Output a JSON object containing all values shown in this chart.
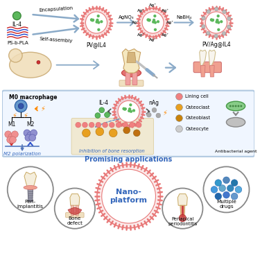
{
  "bg_color": "#ffffff",
  "encap_label": "Encapsulation",
  "self_assembly_label": "Self-assembly",
  "agno3_label": "AgNO₃",
  "nabh4_label": "NaBH₄",
  "ag_ion": "Ag⁺",
  "pv_il4_label": "PV@IL4",
  "pv_ag_il4_label": "PV/Ag@IL4",
  "il4_label": "IL-4",
  "ps_b_pla_label": "PS-b-PLA",
  "m0_label": "M0 macrophage",
  "m1_label": "M1",
  "m2_label": "M2",
  "m2_polarization": "M2 polarization",
  "nag_label": "nAg",
  "inhibition_label": "Inhibition of bone resorption",
  "antibacterial_label": "Antibacterial agent",
  "legend_items": [
    "Lining cell",
    "Osteoclast",
    "Osteoblast",
    "Osteocyte"
  ],
  "legend_colors": [
    "#f08080",
    "#e8a020",
    "#c8820a",
    "#cccccc"
  ],
  "app_title": "Promising applications",
  "vesicle_pink": "#e87878",
  "vesicle_pink_light": "#f5b0b0",
  "vesicle_inner": "#ffffff",
  "il4_green": "#5cb85c",
  "il4_dark": "#3d8b3d",
  "ag_grey": "#aaaaaa",
  "arrow_blue": "#8aaac8",
  "arrow_dark_blue": "#5a82a0",
  "m1_pink": "#f09090",
  "m2_purple": "#9090d0",
  "m0_blue": "#6699cc",
  "orange_cell": "#e8a020",
  "dark_orange_cell": "#c07010",
  "bact_green": "#88cc88",
  "bact_grey": "#aaaaaa",
  "box_fill": "#f0f6ff",
  "box_edge": "#b0c8e0",
  "tooth_cream": "#f5e8c0",
  "tooth_edge": "#c8a060",
  "gum_pink": "#e87878",
  "gum_dark": "#c05050",
  "healthy_tooth": "#f8f5ee",
  "healthy_gum": "#f0a090",
  "circle_grey": "#888888",
  "nano_pink": "#e87878",
  "blue_text": "#3366bb",
  "multi_drug_colors": [
    "#3399cc",
    "#5588bb",
    "#2277aa",
    "#4499dd",
    "#66aacc",
    "#3388bb",
    "#55aadd",
    "#2266aa",
    "#4477cc",
    "#6699cc"
  ]
}
